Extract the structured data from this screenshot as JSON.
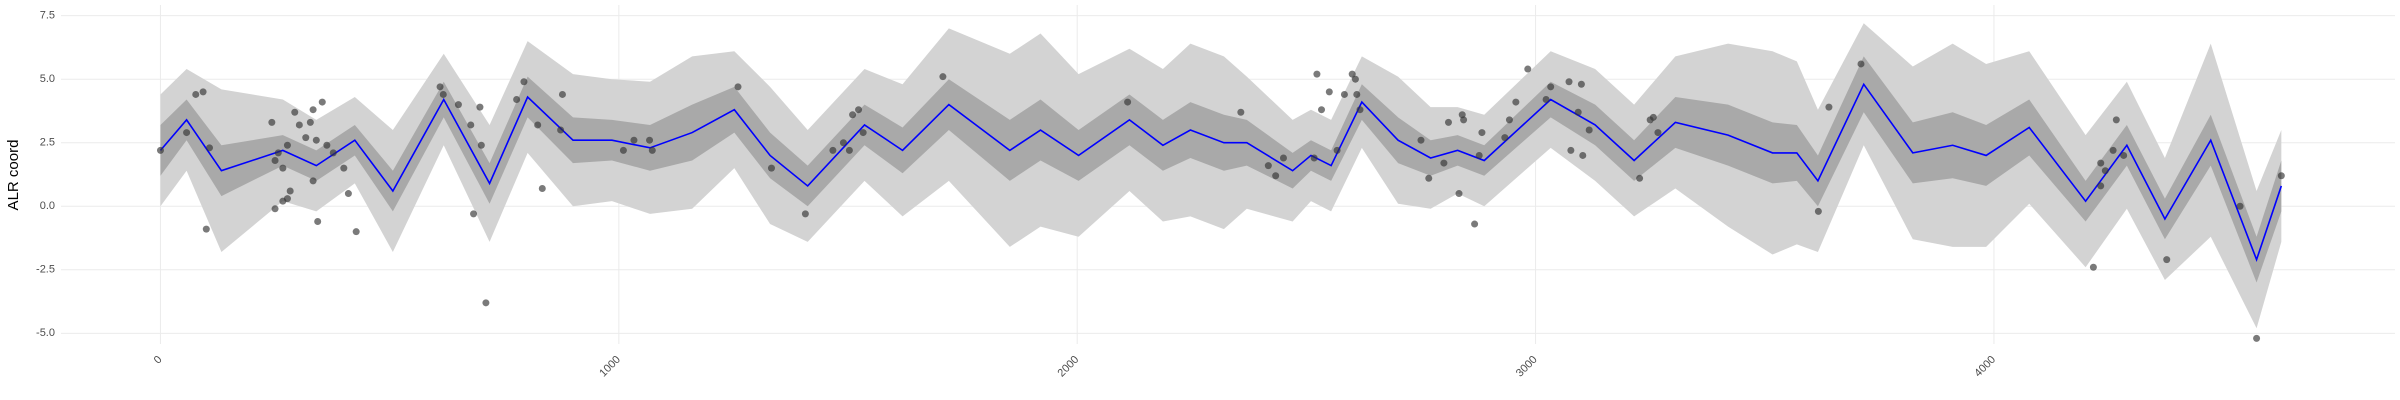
{
  "chart_data": {
    "type": "gp",
    "y_label": "ALR coord",
    "xlim": [
      -217,
      4875
    ],
    "ylim": [
      -5.42,
      7.92
    ],
    "xticks": [
      0,
      1000,
      2000,
      3000,
      4000
    ],
    "yticks": [
      {
        "value": -5,
        "label": "-5.0"
      },
      -2.5,
      {
        "value": 0,
        "label": "0.0"
      },
      2.5,
      {
        "value": 5,
        "label": "5.0"
      },
      7.5
    ],
    "grid": true,
    "x": [
      0,
      57,
      133,
      267,
      340,
      424,
      507,
      618,
      718,
      801,
      900,
      985,
      1068,
      1160,
      1252,
      1330,
      1412,
      1536,
      1619,
      1720,
      1853,
      1920,
      2003,
      2114,
      2187,
      2247,
      2320,
      2370,
      2470,
      2510,
      2554,
      2621,
      2700,
      2771,
      2830,
      2888,
      3033,
      3130,
      3215,
      3305,
      3420,
      3517,
      3570,
      3616,
      3716,
      3823,
      3910,
      3983,
      4077,
      4200,
      4290,
      4373,
      4473,
      4573,
      4627
    ],
    "bands": [
      {
        "color": "#d3d3d3",
        "lower": [
          0.0,
          1.4,
          -1.8,
          0.2,
          -0.2,
          0.9,
          -1.8,
          2.4,
          -1.4,
          2.1,
          0.0,
          0.2,
          -0.3,
          -0.1,
          1.5,
          -0.7,
          -1.4,
          1.0,
          -0.4,
          1.0,
          -1.6,
          -0.8,
          -1.2,
          0.6,
          -0.6,
          -0.4,
          -0.9,
          -0.1,
          -0.6,
          0.2,
          -0.2,
          2.3,
          0.1,
          -0.1,
          0.5,
          0.0,
          2.3,
          1.0,
          -0.4,
          0.7,
          -0.8,
          -1.9,
          -1.5,
          -1.8,
          2.4,
          -1.3,
          -1.6,
          -1.6,
          0.1,
          -2.4,
          -0.1,
          -2.9,
          -1.2,
          -4.8,
          -1.4
        ],
        "upper": [
          4.4,
          5.4,
          4.6,
          4.2,
          3.4,
          4.3,
          3.0,
          6.0,
          3.2,
          6.5,
          5.2,
          5.0,
          4.9,
          5.9,
          6.1,
          4.7,
          3.0,
          5.4,
          4.8,
          7.0,
          6.0,
          6.8,
          5.2,
          6.2,
          5.4,
          6.4,
          5.9,
          5.1,
          3.4,
          3.8,
          3.4,
          5.9,
          5.1,
          3.9,
          3.9,
          3.6,
          6.1,
          5.4,
          4.0,
          5.9,
          6.4,
          6.1,
          5.7,
          3.8,
          7.2,
          5.5,
          6.4,
          5.6,
          6.1,
          2.8,
          4.9,
          1.9,
          6.4,
          0.6,
          3.0
        ]
      },
      {
        "color": "#a9a9a9",
        "lower": [
          1.2,
          2.6,
          0.4,
          1.6,
          1.0,
          2.0,
          -0.2,
          3.5,
          0.1,
          3.5,
          1.7,
          1.8,
          1.4,
          1.8,
          2.9,
          1.1,
          0.0,
          2.4,
          1.3,
          3.0,
          1.0,
          1.8,
          1.0,
          2.4,
          1.4,
          1.9,
          1.4,
          1.6,
          0.7,
          1.4,
          1.0,
          3.4,
          1.7,
          1.2,
          1.6,
          1.2,
          3.5,
          2.4,
          1.0,
          2.3,
          1.6,
          0.9,
          1.0,
          0.0,
          3.7,
          0.9,
          1.1,
          0.8,
          2.0,
          -0.6,
          1.6,
          -1.3,
          1.6,
          -3.0,
          -0.2
        ],
        "upper": [
          3.2,
          4.2,
          2.4,
          2.8,
          2.2,
          3.2,
          1.4,
          4.9,
          1.7,
          5.1,
          3.5,
          3.4,
          3.2,
          4.0,
          4.7,
          2.9,
          1.6,
          4.0,
          3.1,
          5.0,
          3.4,
          4.2,
          3.0,
          4.4,
          3.4,
          4.1,
          3.6,
          3.4,
          2.1,
          2.6,
          2.2,
          4.8,
          3.5,
          2.6,
          2.8,
          2.4,
          4.9,
          4.0,
          2.6,
          4.3,
          4.0,
          3.3,
          3.2,
          2.0,
          5.9,
          3.3,
          3.7,
          3.2,
          4.2,
          1.0,
          3.2,
          0.3,
          3.6,
          -1.2,
          1.8
        ]
      }
    ],
    "line": {
      "color": "#0000ff",
      "values": [
        2.2,
        3.4,
        1.4,
        2.2,
        1.6,
        2.6,
        0.6,
        4.2,
        0.9,
        4.3,
        2.6,
        2.6,
        2.3,
        2.9,
        3.8,
        2.0,
        0.8,
        3.2,
        2.2,
        4.0,
        2.2,
        3.0,
        2.0,
        3.4,
        2.4,
        3.0,
        2.5,
        2.5,
        1.4,
        2.0,
        1.6,
        4.1,
        2.6,
        1.9,
        2.2,
        1.8,
        4.2,
        3.2,
        1.8,
        3.3,
        2.8,
        2.1,
        2.1,
        1.0,
        4.8,
        2.1,
        2.4,
        2.0,
        3.1,
        0.2,
        2.4,
        -0.5,
        2.6,
        -2.1,
        0.8
      ]
    },
    "points": {
      "color": "#333333",
      "x": [
        0,
        57,
        77,
        93,
        107,
        100,
        243,
        250,
        257,
        267,
        277,
        277,
        283,
        250,
        267,
        293,
        303,
        317,
        327,
        333,
        340,
        333,
        343,
        353,
        363,
        377,
        400,
        410,
        427,
        610,
        617,
        650,
        677,
        683,
        700,
        697,
        710,
        777,
        793,
        823,
        833,
        873,
        877,
        1010,
        1033,
        1067,
        1073,
        1260,
        1333,
        1407,
        1467,
        1490,
        1503,
        1510,
        1523,
        1533,
        1707,
        2110,
        2357,
        2417,
        2433,
        2450,
        2517,
        2523,
        2533,
        2550,
        2567,
        2583,
        2600,
        2607,
        2610,
        2617,
        2750,
        2767,
        2800,
        2810,
        2833,
        2840,
        2843,
        2867,
        2877,
        2883,
        2933,
        2943,
        2957,
        2983,
        3023,
        3033,
        3073,
        3077,
        3093,
        3100,
        3103,
        3117,
        3227,
        3250,
        3257,
        3267,
        3617,
        3640,
        3710,
        4217,
        4233,
        4233,
        4243,
        4260,
        4267,
        4283,
        4377,
        4537,
        4573,
        4627
      ],
      "y": [
        2.2,
        2.9,
        4.4,
        4.5,
        2.3,
        -0.9,
        3.3,
        1.8,
        2.1,
        1.5,
        2.4,
        0.3,
        0.6,
        -0.1,
        0.2,
        3.7,
        3.2,
        2.7,
        3.3,
        3.8,
        2.6,
        1.0,
        -0.6,
        4.1,
        2.4,
        2.1,
        1.5,
        0.5,
        -1.0,
        4.7,
        4.4,
        4.0,
        3.2,
        -0.3,
        2.4,
        3.9,
        -3.8,
        4.2,
        4.9,
        3.2,
        0.7,
        3.0,
        4.4,
        2.2,
        2.6,
        2.6,
        2.2,
        4.7,
        1.5,
        -0.3,
        2.2,
        2.5,
        2.2,
        3.6,
        3.8,
        2.9,
        5.1,
        4.1,
        3.7,
        1.6,
        1.2,
        1.9,
        1.9,
        5.2,
        3.8,
        4.5,
        2.2,
        4.4,
        5.2,
        5.0,
        4.4,
        3.8,
        2.6,
        1.1,
        1.7,
        3.3,
        0.5,
        3.6,
        3.4,
        -0.7,
        2.0,
        2.9,
        2.7,
        3.4,
        4.1,
        5.4,
        4.2,
        4.7,
        4.9,
        2.2,
        3.7,
        4.8,
        2.0,
        3.0,
        1.1,
        3.4,
        3.5,
        2.9,
        -0.2,
        3.9,
        5.6,
        -2.4,
        1.7,
        0.8,
        1.4,
        2.2,
        3.4,
        2.0,
        -2.1,
        0.0,
        -5.2,
        1.2
      ]
    }
  }
}
